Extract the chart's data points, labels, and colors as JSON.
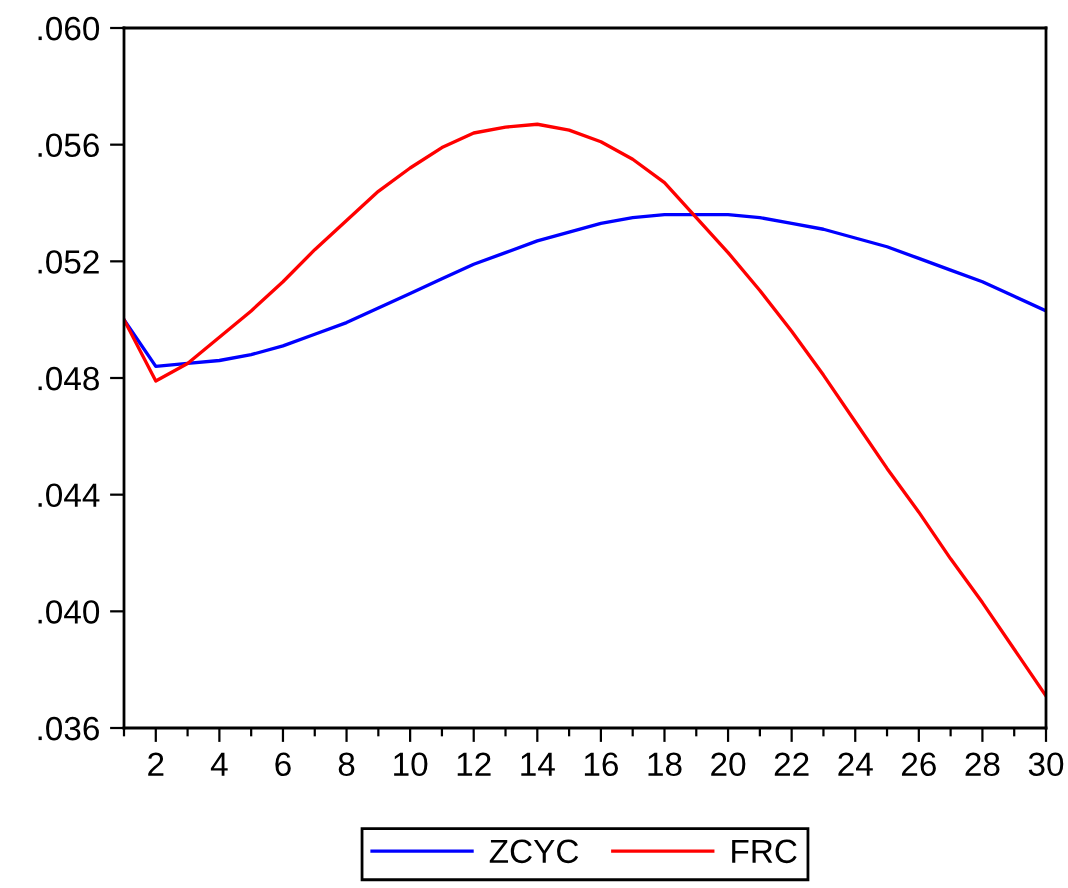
{
  "chart_data": {
    "type": "line",
    "x": [
      1,
      2,
      3,
      4,
      5,
      6,
      7,
      8,
      9,
      10,
      11,
      12,
      13,
      14,
      15,
      16,
      17,
      18,
      19,
      20,
      21,
      22,
      23,
      24,
      25,
      26,
      27,
      28,
      29,
      30
    ],
    "series": [
      {
        "name": "ZCYC",
        "color": "#0000ff",
        "values": [
          0.05,
          0.0484,
          0.0485,
          0.0486,
          0.0488,
          0.0491,
          0.0495,
          0.0499,
          0.0504,
          0.0509,
          0.0514,
          0.0519,
          0.0523,
          0.0527,
          0.053,
          0.0533,
          0.0535,
          0.0536,
          0.0536,
          0.0536,
          0.0535,
          0.0533,
          0.0531,
          0.0528,
          0.0525,
          0.0521,
          0.0517,
          0.0513,
          0.0508,
          0.0503
        ]
      },
      {
        "name": "FRC",
        "color": "#ff0000",
        "values": [
          0.05,
          0.0479,
          0.0485,
          0.0494,
          0.0503,
          0.0513,
          0.0524,
          0.0534,
          0.0544,
          0.0552,
          0.0559,
          0.0564,
          0.0566,
          0.0567,
          0.0565,
          0.0561,
          0.0555,
          0.0547,
          0.0535,
          0.0523,
          0.051,
          0.0496,
          0.0481,
          0.0465,
          0.0449,
          0.0434,
          0.0418,
          0.0403,
          0.0387,
          0.0371
        ]
      }
    ],
    "xlim": [
      1,
      30
    ],
    "xticks": [
      {
        "value": 1,
        "label": null
      },
      2,
      {
        "value": 3,
        "label": null
      },
      4,
      {
        "value": 5,
        "label": null
      },
      6,
      {
        "value": 7,
        "label": null
      },
      8,
      {
        "value": 9,
        "label": null
      },
      10,
      {
        "value": 11,
        "label": null
      },
      12,
      {
        "value": 13,
        "label": null
      },
      14,
      {
        "value": 15,
        "label": null
      },
      16,
      {
        "value": 17,
        "label": null
      },
      18,
      {
        "value": 19,
        "label": null
      },
      20,
      {
        "value": 21,
        "label": null
      },
      22,
      {
        "value": 23,
        "label": null
      },
      24,
      {
        "value": 25,
        "label": null
      },
      26,
      {
        "value": 27,
        "label": null
      },
      28,
      {
        "value": 29,
        "label": null
      },
      30
    ],
    "ylim": [
      0.036,
      0.06
    ],
    "yticks": [
      {
        "value": 0.036,
        "label": ".036"
      },
      {
        "value": 0.04,
        "label": ".040"
      },
      {
        "value": 0.044,
        "label": ".044"
      },
      {
        "value": 0.048,
        "label": ".048"
      },
      {
        "value": 0.052,
        "label": ".052"
      },
      {
        "value": 0.056,
        "label": ".056"
      },
      {
        "value": 0.06,
        "label": ".060"
      }
    ],
    "grid": false,
    "legend": "bottom",
    "line_style": "solid"
  }
}
